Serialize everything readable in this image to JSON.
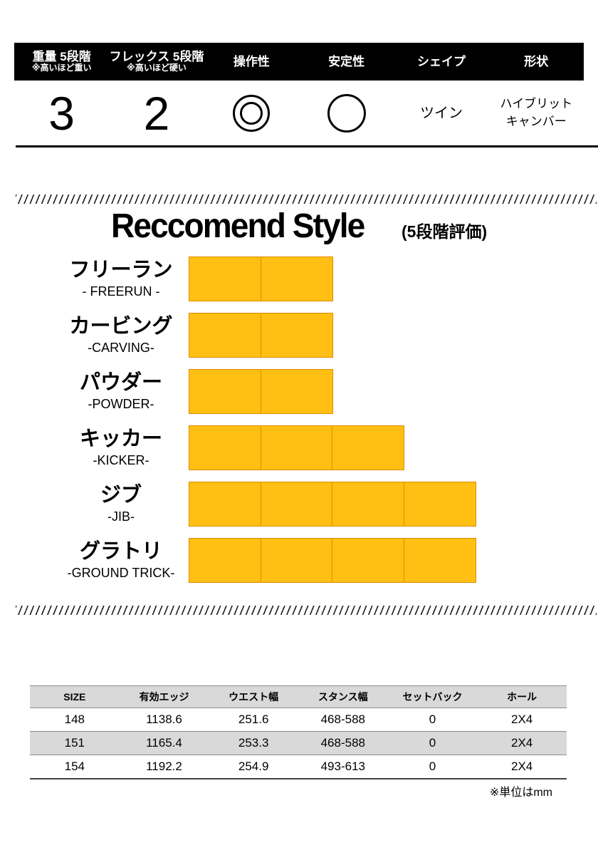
{
  "spec_header": {
    "columns": [
      {
        "label": "重量 5段階",
        "sub": "※高いほど重い",
        "value": "3",
        "kind": "number"
      },
      {
        "label": "フレックス 5段階",
        "sub": "※高いほど硬い",
        "value": "2",
        "kind": "number"
      },
      {
        "label": "操作性",
        "value": "double-circle",
        "kind": "icon"
      },
      {
        "label": "安定性",
        "value": "circle",
        "kind": "icon"
      },
      {
        "label": "シェイプ",
        "value": "ツイン",
        "kind": "text"
      },
      {
        "label": "形状",
        "value_line1": "ハイブリット",
        "value_line2": "キャンバー",
        "kind": "text2"
      }
    ]
  },
  "recommend": {
    "title": "Reccomend Style",
    "subtitle": "(5段階評価)"
  },
  "chart_data": {
    "type": "bar",
    "orientation": "horizontal",
    "scale_max": 5,
    "title": "Reccomend Style",
    "subtitle": "(5段階評価)",
    "bar_fill": "#FFC013",
    "bar_border": "#E18A00",
    "categories": [
      {
        "label_jp": "フリーラン",
        "label_en": "- FREERUN -",
        "value": 2
      },
      {
        "label_jp": "カービング",
        "label_en": "-CARVING-",
        "value": 2
      },
      {
        "label_jp": "パウダー",
        "label_en": "-POWDER-",
        "value": 2
      },
      {
        "label_jp": "キッカー",
        "label_en": "-KICKER-",
        "value": 3
      },
      {
        "label_jp": "ジブ",
        "label_en": "-JIB-",
        "value": 4
      },
      {
        "label_jp": "グラトリ",
        "label_en": "-GROUND TRICK-",
        "value": 4
      }
    ]
  },
  "size_table": {
    "header_bg": "#D9D9D9",
    "alt_row_bg": "#D9D9D9",
    "headers": [
      "SIZE",
      "有効エッジ",
      "ウエスト幅",
      "スタンス幅",
      "セットバック",
      "ホール"
    ],
    "rows": [
      [
        "148",
        "1138.6",
        "251.6",
        "468-588",
        "0",
        "2X4"
      ],
      [
        "151",
        "1165.4",
        "253.3",
        "468-588",
        "0",
        "2X4"
      ],
      [
        "154",
        "1192.2",
        "254.9",
        "493-613",
        "0",
        "2X4"
      ]
    ],
    "note": "※単位はmm"
  }
}
